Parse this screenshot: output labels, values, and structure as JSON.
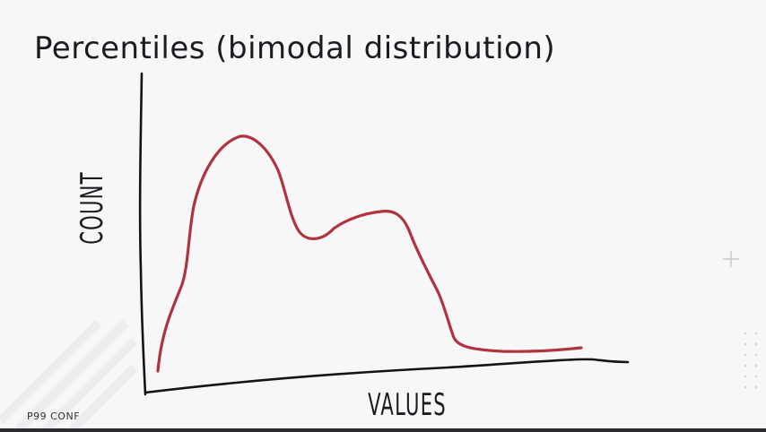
{
  "slide": {
    "title": "Percentiles (bimodal distribution)",
    "footer_brand": "P99 CONF"
  },
  "diagram": {
    "y_axis_label": "COUNT",
    "x_axis_label": "VALUES",
    "curve_color": "#b0343f",
    "axis_color": "#141418"
  }
}
